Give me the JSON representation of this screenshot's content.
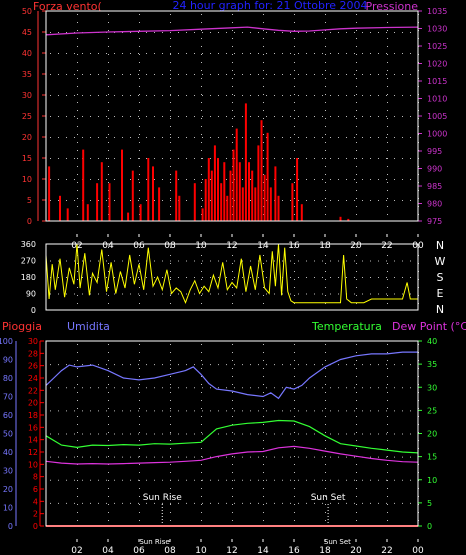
{
  "title": "24 hour graph for: 21 Ottobre 2004",
  "colors": {
    "frame": "#ffffff",
    "wind_axis": "#ff3333",
    "wind_bars": "#ff0000",
    "pressure": "#cc33cc",
    "title": "#2222ff",
    "direction": "#ffff00",
    "humidity": "#7777ff",
    "temperature": "#33ff33",
    "dew_point": "#dd33dd",
    "rain": "#ff0000",
    "sun": "#ffffff"
  },
  "hour_ticks": [
    "02",
    "04",
    "06",
    "08",
    "10",
    "12",
    "14",
    "16",
    "18",
    "20",
    "22",
    "00"
  ],
  "chart_data": [
    {
      "id": "wind_pressure",
      "type": "bar",
      "title": "24 hour graph for: 21 Ottobre 2004",
      "x_range_hours": [
        0,
        24
      ],
      "left_axis": {
        "label": "Forza vento(",
        "ticks": [
          0,
          5,
          10,
          15,
          20,
          25,
          30,
          35,
          40,
          45,
          50
        ],
        "range": [
          0,
          50
        ]
      },
      "right_axis": {
        "label": "Pressione",
        "ticks": [
          975,
          980,
          985,
          990,
          995,
          1000,
          1005,
          1010,
          1015,
          1020,
          1025,
          1030,
          1035
        ],
        "range": [
          975,
          1035
        ]
      },
      "series": [
        {
          "name": "Forza vento(",
          "kind": "bars",
          "axis": "left",
          "points": [
            [
              0.2,
              13
            ],
            [
              0.9,
              6
            ],
            [
              1.4,
              3
            ],
            [
              2.4,
              17
            ],
            [
              2.7,
              4
            ],
            [
              3.3,
              9
            ],
            [
              3.6,
              14
            ],
            [
              4.1,
              9
            ],
            [
              4.9,
              17
            ],
            [
              5.3,
              2
            ],
            [
              5.6,
              12
            ],
            [
              6.1,
              4
            ],
            [
              6.6,
              15
            ],
            [
              6.9,
              13
            ],
            [
              7.3,
              8
            ],
            [
              8.4,
              12
            ],
            [
              8.6,
              6
            ],
            [
              9.6,
              9
            ],
            [
              10.1,
              3
            ],
            [
              10.3,
              10
            ],
            [
              10.5,
              15
            ],
            [
              10.7,
              12
            ],
            [
              10.9,
              18
            ],
            [
              11.1,
              15
            ],
            [
              11.3,
              9
            ],
            [
              11.5,
              14
            ],
            [
              11.7,
              6
            ],
            [
              11.9,
              12
            ],
            [
              12.1,
              17
            ],
            [
              12.3,
              22
            ],
            [
              12.5,
              14
            ],
            [
              12.7,
              8
            ],
            [
              12.9,
              28
            ],
            [
              13.1,
              14
            ],
            [
              13.3,
              12
            ],
            [
              13.5,
              8
            ],
            [
              13.7,
              18
            ],
            [
              13.9,
              24
            ],
            [
              14.1,
              11
            ],
            [
              14.3,
              21
            ],
            [
              14.5,
              8
            ],
            [
              14.8,
              13
            ],
            [
              15.0,
              6
            ],
            [
              15.9,
              9
            ],
            [
              16.2,
              15
            ],
            [
              16.5,
              4
            ],
            [
              19.0,
              1
            ],
            [
              19.5,
              0.5
            ]
          ]
        },
        {
          "name": "Pressione",
          "kind": "line",
          "axis": "right",
          "points": [
            [
              0,
              1028.2
            ],
            [
              2,
              1028.7
            ],
            [
              4,
              1029.0
            ],
            [
              6,
              1029.2
            ],
            [
              8,
              1029.4
            ],
            [
              10,
              1029.8
            ],
            [
              12,
              1030.2
            ],
            [
              13,
              1030.4
            ],
            [
              14,
              1029.9
            ],
            [
              15,
              1029.5
            ],
            [
              16,
              1029.2
            ],
            [
              17,
              1029.3
            ],
            [
              18,
              1029.6
            ],
            [
              19,
              1029.9
            ],
            [
              20,
              1030.1
            ],
            [
              22,
              1030.3
            ],
            [
              24,
              1030.4
            ]
          ]
        }
      ]
    },
    {
      "id": "wind_direction",
      "type": "line",
      "x_range_hours": [
        0,
        24
      ],
      "left_axis": {
        "ticks": [
          0,
          90,
          180,
          270,
          360
        ],
        "range": [
          0,
          360
        ]
      },
      "right_labels": [
        "N",
        "W",
        "S",
        "E",
        "N"
      ],
      "series": [
        {
          "name": "direction",
          "points": [
            [
              0,
              300
            ],
            [
              0.2,
              60
            ],
            [
              0.4,
              250
            ],
            [
              0.6,
              110
            ],
            [
              0.9,
              280
            ],
            [
              1.2,
              70
            ],
            [
              1.5,
              230
            ],
            [
              1.8,
              140
            ],
            [
              2.0,
              360
            ],
            [
              2.2,
              120
            ],
            [
              2.5,
              310
            ],
            [
              2.8,
              80
            ],
            [
              3.0,
              200
            ],
            [
              3.3,
              150
            ],
            [
              3.6,
              330
            ],
            [
              3.9,
              100
            ],
            [
              4.2,
              260
            ],
            [
              4.5,
              90
            ],
            [
              4.8,
              210
            ],
            [
              5.1,
              120
            ],
            [
              5.4,
              300
            ],
            [
              5.7,
              140
            ],
            [
              6.0,
              250
            ],
            [
              6.3,
              110
            ],
            [
              6.6,
              340
            ],
            [
              6.9,
              130
            ],
            [
              7.2,
              180
            ],
            [
              7.5,
              110
            ],
            [
              7.8,
              220
            ],
            [
              8.1,
              90
            ],
            [
              8.4,
              120
            ],
            [
              8.7,
              100
            ],
            [
              9.0,
              40
            ],
            [
              9.3,
              110
            ],
            [
              9.6,
              160
            ],
            [
              9.9,
              90
            ],
            [
              10.2,
              130
            ],
            [
              10.5,
              100
            ],
            [
              10.8,
              190
            ],
            [
              11.1,
              120
            ],
            [
              11.4,
              260
            ],
            [
              11.7,
              110
            ],
            [
              12.0,
              150
            ],
            [
              12.3,
              120
            ],
            [
              12.6,
              280
            ],
            [
              12.9,
              100
            ],
            [
              13.2,
              240
            ],
            [
              13.5,
              110
            ],
            [
              13.8,
              300
            ],
            [
              14.1,
              120
            ],
            [
              14.4,
              90
            ],
            [
              14.6,
              320
            ],
            [
              14.8,
              130
            ],
            [
              15.0,
              360
            ],
            [
              15.2,
              80
            ],
            [
              15.4,
              340
            ],
            [
              15.6,
              100
            ],
            [
              15.8,
              50
            ],
            [
              16.0,
              40
            ],
            [
              16.5,
              40
            ],
            [
              17.0,
              40
            ],
            [
              18.0,
              40
            ],
            [
              19.0,
              40
            ],
            [
              19.2,
              300
            ],
            [
              19.4,
              60
            ],
            [
              19.7,
              40
            ],
            [
              20.5,
              40
            ],
            [
              21.0,
              60
            ],
            [
              22.0,
              60
            ],
            [
              23.0,
              60
            ],
            [
              23.3,
              150
            ],
            [
              23.5,
              60
            ],
            [
              24,
              60
            ]
          ]
        }
      ]
    },
    {
      "id": "humidity_temperature",
      "type": "line",
      "x_range_hours": [
        0,
        24
      ],
      "axes": [
        {
          "label": "Pioggia",
          "ticks": [
            0,
            2,
            4,
            6,
            8,
            10,
            12,
            14,
            16,
            18,
            20,
            22,
            24,
            26,
            28,
            30
          ],
          "range": [
            0,
            30
          ]
        },
        {
          "label": "Umidita",
          "ticks": [
            0,
            10,
            20,
            30,
            40,
            50,
            60,
            70,
            80,
            90,
            100
          ],
          "range": [
            0,
            100
          ]
        },
        {
          "label": "Temperatura",
          "ticks": [
            0,
            5,
            10,
            15,
            20,
            25,
            30,
            35,
            40
          ],
          "range": [
            0,
            40
          ]
        },
        {
          "label": "Dew Point (°C)"
        }
      ],
      "series": [
        {
          "name": "Umidita",
          "axis": "Umidita",
          "points": [
            [
              0,
              76
            ],
            [
              0.5,
              80
            ],
            [
              1,
              84
            ],
            [
              1.5,
              87
            ],
            [
              2,
              86
            ],
            [
              3,
              87
            ],
            [
              4,
              84
            ],
            [
              5,
              80
            ],
            [
              6,
              79
            ],
            [
              7,
              80
            ],
            [
              8,
              82
            ],
            [
              9,
              84
            ],
            [
              9.5,
              86
            ],
            [
              10,
              82
            ],
            [
              10.5,
              77
            ],
            [
              11,
              74
            ],
            [
              12,
              73
            ],
            [
              13,
              71
            ],
            [
              14,
              70
            ],
            [
              14.5,
              72
            ],
            [
              15,
              69
            ],
            [
              15.5,
              75
            ],
            [
              16,
              74
            ],
            [
              16.5,
              76
            ],
            [
              17,
              80
            ],
            [
              18,
              86
            ],
            [
              19,
              90
            ],
            [
              20,
              92
            ],
            [
              21,
              93
            ],
            [
              22,
              93
            ],
            [
              23,
              94
            ],
            [
              24,
              94
            ]
          ]
        },
        {
          "name": "Temperatura",
          "axis": "Temperatura",
          "points": [
            [
              0,
              19.5
            ],
            [
              1,
              17.5
            ],
            [
              2,
              17.0
            ],
            [
              3,
              17.5
            ],
            [
              4,
              17.4
            ],
            [
              5,
              17.6
            ],
            [
              6,
              17.5
            ],
            [
              7,
              17.8
            ],
            [
              8,
              17.7
            ],
            [
              9,
              17.9
            ],
            [
              10,
              18.1
            ],
            [
              11,
              21.0
            ],
            [
              12,
              21.8
            ],
            [
              13,
              22.2
            ],
            [
              14,
              22.4
            ],
            [
              15,
              22.8
            ],
            [
              16,
              22.7
            ],
            [
              17,
              21.5
            ],
            [
              18,
              19.5
            ],
            [
              19,
              17.8
            ],
            [
              20,
              17.3
            ],
            [
              21,
              16.8
            ],
            [
              22,
              16.4
            ],
            [
              23,
              16.0
            ],
            [
              24,
              15.8
            ]
          ]
        },
        {
          "name": "Dew Point (°C)",
          "axis": "Temperatura",
          "points": [
            [
              0,
              14.0
            ],
            [
              1,
              13.6
            ],
            [
              2,
              13.4
            ],
            [
              3,
              13.5
            ],
            [
              4,
              13.4
            ],
            [
              5,
              13.5
            ],
            [
              6,
              13.6
            ],
            [
              7,
              13.7
            ],
            [
              8,
              13.8
            ],
            [
              9,
              14.0
            ],
            [
              10,
              14.2
            ],
            [
              11,
              15.0
            ],
            [
              12,
              15.6
            ],
            [
              13,
              16.0
            ],
            [
              14,
              16.1
            ],
            [
              15,
              16.9
            ],
            [
              16,
              17.2
            ],
            [
              17,
              16.8
            ],
            [
              18,
              16.2
            ],
            [
              19,
              15.6
            ],
            [
              20,
              15.1
            ],
            [
              21,
              14.6
            ],
            [
              22,
              14.2
            ],
            [
              23,
              13.9
            ],
            [
              24,
              13.8
            ]
          ]
        },
        {
          "name": "Pioggia",
          "axis": "Pioggia",
          "points": [
            [
              0,
              0
            ],
            [
              24,
              0
            ]
          ]
        }
      ],
      "annotations": [
        {
          "text": "Sun Rise",
          "hour": 7.5
        },
        {
          "text": "Sun Set",
          "hour": 18.2
        }
      ]
    }
  ]
}
